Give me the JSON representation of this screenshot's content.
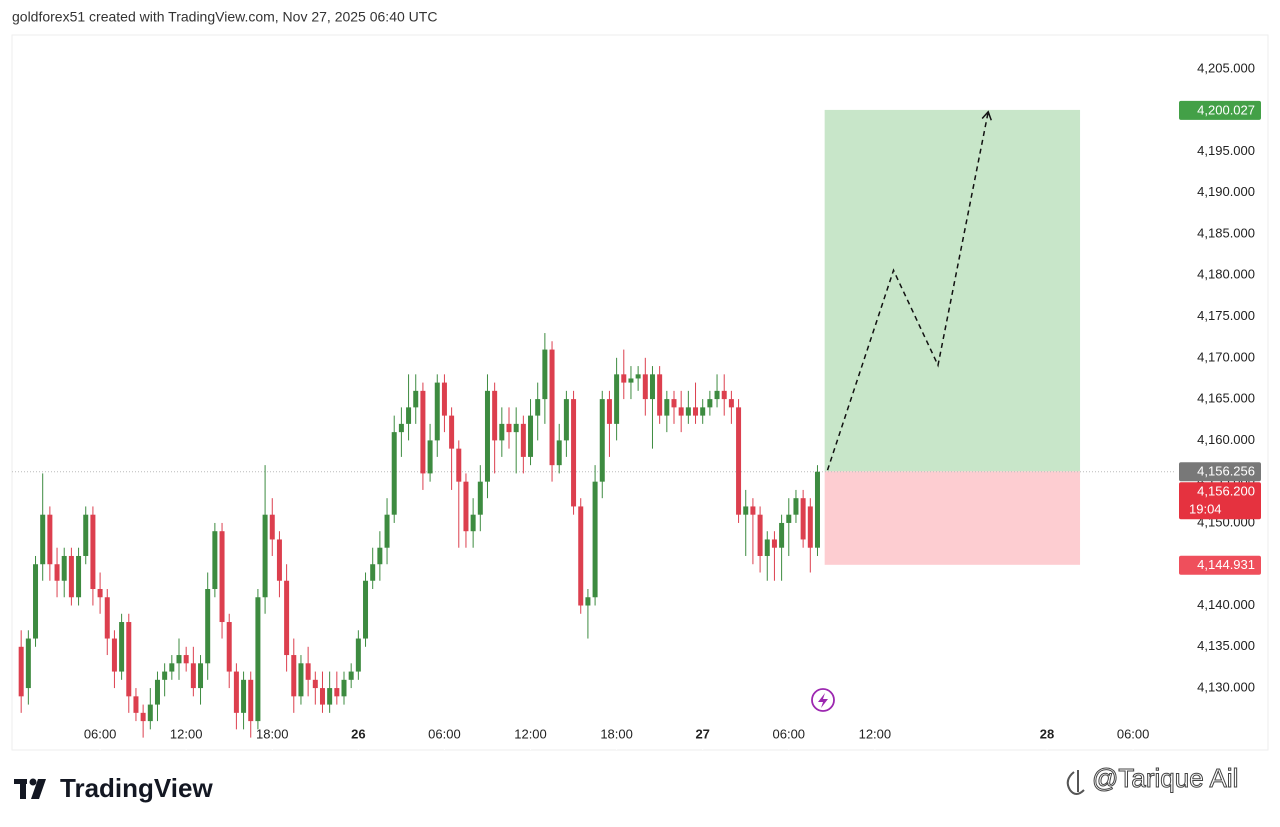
{
  "header": {
    "text": "goldforex51 created with TradingView.com, Nov 27, 2025 06:40 UTC"
  },
  "chart_data": {
    "type": "candlestick",
    "xlim": [
      0,
      80.5
    ],
    "ylim": [
      4122.5,
      4209.1
    ],
    "xticks": [
      {
        "value": 6,
        "label": "06:00"
      },
      {
        "value": 12,
        "label": "12:00"
      },
      {
        "value": 18,
        "label": "18:00"
      },
      {
        "value": 24,
        "label": "26"
      },
      {
        "value": 30,
        "label": "06:00"
      },
      {
        "value": 36,
        "label": "12:00"
      },
      {
        "value": 42,
        "label": "18:00"
      },
      {
        "value": 48,
        "label": "27"
      },
      {
        "value": 54,
        "label": "06:00"
      },
      {
        "value": 60,
        "label": "12:00"
      },
      {
        "value": 72,
        "label": "28"
      },
      {
        "value": 78,
        "label": "06:00"
      }
    ],
    "yticks": [
      {
        "value": 4130,
        "label": "4,130.000"
      },
      {
        "value": 4135,
        "label": "4,135.000"
      },
      {
        "value": 4140,
        "label": "4,140.000"
      },
      {
        "value": 4145,
        "label": "4,145.000"
      },
      {
        "value": 4150,
        "label": "4,150.000"
      },
      {
        "value": 4155,
        "label": "4,155.000"
      },
      {
        "value": 4160,
        "label": "4,160.000"
      },
      {
        "value": 4165,
        "label": "4,165.000"
      },
      {
        "value": 4170,
        "label": "4,170.000"
      },
      {
        "value": 4175,
        "label": "4,175.000"
      },
      {
        "value": 4180,
        "label": "4,180.000"
      },
      {
        "value": 4185,
        "label": "4,185.000"
      },
      {
        "value": 4190,
        "label": "4,190.000"
      },
      {
        "value": 4195,
        "label": "4,195.000"
      },
      {
        "value": 4200,
        "label": "4,200.000"
      },
      {
        "value": 4205,
        "label": "4,205.000"
      }
    ],
    "up_color": "#3d8b40",
    "down_color": "#dc3f4e",
    "candles": {
      "x": [
        0.5,
        1,
        1.5,
        2,
        2.5,
        3,
        3.5,
        4,
        4.5,
        5,
        5.5,
        6,
        6.5,
        7,
        7.5,
        8,
        8.5,
        9,
        9.5,
        10,
        10.5,
        11,
        11.5,
        12,
        12.5,
        13,
        13.5,
        14,
        14.5,
        15,
        15.5,
        16,
        16.5,
        17,
        17.5,
        18,
        18.5,
        19,
        19.5,
        20,
        20.5,
        21,
        21.5,
        22,
        22.5,
        23,
        23.5,
        24,
        24.5,
        25,
        25.5,
        26,
        26.5,
        27,
        27.5,
        28,
        28.5,
        29,
        29.5,
        30,
        30.5,
        31,
        31.5,
        32,
        32.5,
        33,
        33.5,
        34,
        34.5,
        35,
        35.5,
        36,
        36.5,
        37,
        37.5,
        38,
        38.5,
        39,
        39.5,
        40,
        40.5,
        41,
        41.5,
        42,
        42.5,
        43,
        43.5,
        44,
        44.5,
        45,
        45.5,
        46,
        46.5,
        47,
        47.5,
        48,
        48.5,
        49,
        49.5,
        50,
        50.5,
        51,
        51.5,
        52,
        52.5,
        53,
        53.5,
        54,
        54.5,
        55,
        55.5,
        56
      ],
      "open": [
        4135,
        4130,
        4136,
        4145,
        4151,
        4145,
        4143,
        4146,
        4141,
        4146,
        4151,
        4142,
        4141,
        4136,
        4132,
        4138,
        4129,
        4127,
        4126,
        4128,
        4131,
        4132,
        4133,
        4134,
        4133,
        4130,
        4133,
        4142,
        4149,
        4138,
        4132,
        4127,
        4131,
        4126,
        4141,
        4151,
        4148,
        4143,
        4134,
        4129,
        4133,
        4131,
        4130,
        4128,
        4130,
        4129,
        4131,
        4132,
        4136,
        4143,
        4145,
        4147,
        4151,
        4161,
        4162,
        4164,
        4166,
        4156,
        4160,
        4167,
        4163,
        4159,
        4155,
        4149,
        4151,
        4155,
        4166,
        4160,
        4162,
        4161,
        4162,
        4158,
        4163,
        4165,
        4171,
        4157,
        4160,
        4165,
        4152,
        4140,
        4141,
        4155,
        4165,
        4162,
        4168,
        4167,
        4167.5,
        4168,
        4165,
        4168,
        4163,
        4165,
        4164,
        4163,
        4164,
        4163,
        4164,
        4165,
        4166,
        4165,
        4164,
        4151,
        4152,
        4151,
        4146,
        4148,
        4147,
        4150,
        4151,
        4153,
        4152,
        4147
      ],
      "high": [
        4137,
        4137,
        4146,
        4156,
        4152,
        4147,
        4147,
        4147,
        4147,
        4152,
        4152,
        4144,
        4142,
        4137,
        4139,
        4139,
        4130,
        4128,
        4130,
        4132,
        4133,
        4134,
        4136,
        4135,
        4135,
        4134,
        4144,
        4150,
        4150,
        4139,
        4133,
        4132,
        4132,
        4142,
        4157,
        4153,
        4149,
        4145,
        4136,
        4134,
        4135,
        4132,
        4132,
        4132,
        4132,
        4132,
        4133,
        4137,
        4144,
        4147,
        4149,
        4153,
        4163,
        4164,
        4168,
        4168,
        4167,
        4162,
        4168,
        4168,
        4164,
        4160,
        4156,
        4153,
        4157,
        4168,
        4167,
        4164,
        4164,
        4164,
        4163,
        4165,
        4167,
        4173,
        4172,
        4162,
        4166,
        4166,
        4153,
        4142,
        4157,
        4166,
        4166,
        4170,
        4171,
        4169,
        4169,
        4170,
        4169,
        4169,
        4166,
        4166,
        4166,
        4166,
        4167,
        4165,
        4166,
        4168,
        4168,
        4166,
        4165,
        4154,
        4153,
        4152,
        4149,
        4149,
        4151,
        4153,
        4154,
        4154,
        4153,
        4157
      ],
      "low": [
        4127,
        4128,
        4135,
        4143,
        4143,
        4141,
        4141,
        4140,
        4140,
        4145,
        4140,
        4139,
        4134,
        4130,
        4131,
        4127,
        4126,
        4124,
        4125,
        4126,
        4129,
        4131,
        4131,
        4132,
        4129,
        4128,
        4131,
        4141,
        4136,
        4130,
        4125,
        4125,
        4124,
        4125,
        4139,
        4146,
        4141,
        4132,
        4127,
        4128,
        4129,
        4128,
        4127,
        4127,
        4128,
        4128,
        4130,
        4131,
        4135,
        4142,
        4143,
        4145,
        4150,
        4158,
        4160,
        4162,
        4154,
        4155,
        4158,
        4161,
        4154,
        4147,
        4147,
        4147,
        4149,
        4153,
        4156,
        4158,
        4159,
        4156,
        4156,
        4157,
        4160,
        4162,
        4155,
        4156,
        4158,
        4151,
        4139,
        4136,
        4140,
        4153,
        4158,
        4160,
        4165,
        4165,
        4166,
        4163,
        4159,
        4162,
        4161,
        4162,
        4161,
        4162,
        4162,
        4162,
        4163,
        4164,
        4163,
        4162,
        4150,
        4146,
        4145,
        4144,
        4143,
        4143,
        4143,
        4146,
        4150,
        4147,
        4144,
        4146
      ],
      "close": [
        4129,
        4136,
        4145,
        4151,
        4145,
        4143,
        4146,
        4141,
        4146,
        4151,
        4142,
        4141,
        4136,
        4132,
        4138,
        4129,
        4127,
        4126,
        4128,
        4131,
        4132,
        4133,
        4134,
        4133,
        4130,
        4133,
        4142,
        4149,
        4138,
        4132,
        4127,
        4131,
        4126,
        4141,
        4151,
        4148,
        4143,
        4134,
        4129,
        4133,
        4131,
        4130,
        4128,
        4130,
        4129,
        4131,
        4132,
        4136,
        4143,
        4145,
        4147,
        4151,
        4161,
        4162,
        4164,
        4166,
        4156,
        4160,
        4167,
        4163,
        4159,
        4155,
        4149,
        4151,
        4155,
        4166,
        4160,
        4162,
        4161,
        4162,
        4158,
        4163,
        4165,
        4171,
        4157,
        4160,
        4165,
        4152,
        4140,
        4141,
        4155,
        4165,
        4162,
        4168,
        4167,
        4167.5,
        4168,
        4165,
        4168,
        4163,
        4165,
        4164,
        4163,
        4164,
        4163,
        4164,
        4165,
        4166,
        4165,
        4164,
        4151,
        4152,
        4151,
        4146,
        4148,
        4147,
        4150,
        4151,
        4153,
        4148,
        4147,
        4156.2
      ]
    },
    "position": {
      "x": [
        56.5,
        74.3
      ],
      "entry": 4156.256,
      "target": 4200.027,
      "stop": 4144.931,
      "profit_color": "#c8e6c9",
      "loss_color": "#fdcdd1"
    },
    "projection": {
      "x": [
        56.7,
        61.3,
        64.4,
        67.9
      ],
      "y": [
        4156.4,
        4180.6,
        4169.1,
        4199.8
      ]
    },
    "price_labels": [
      {
        "value": 4200.027,
        "label": "4,200.027",
        "color": "#43a047"
      },
      {
        "value": 4156.256,
        "label": "4,156.256",
        "color": "#787878"
      },
      {
        "value": 4156.2,
        "label": "4,156.200",
        "color": "#e5323f"
      },
      {
        "value": 4144.931,
        "label": "4,144.931",
        "color": "#ef4f5c"
      }
    ],
    "countdown": "19:04"
  },
  "footer": {
    "logo": "TradingView",
    "watermark": "@Tarique Ail"
  }
}
